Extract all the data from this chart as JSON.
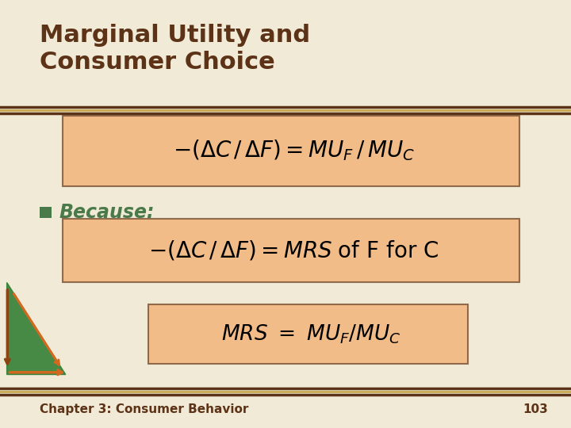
{
  "title_line1": "Marginal Utility and",
  "title_line2": "Consumer Choice",
  "title_color": "#5C3317",
  "bg_color": "#F0EAD6",
  "box_fill": "#F4A460",
  "box_edge_color": "#5C3317",
  "bullet_color": "#4a7a4a",
  "bullet_text": "Because:",
  "footer_text": "Chapter 3: Consumer Behavior",
  "footer_page": "103",
  "footer_color": "#5C3317",
  "rule_color_outer": "#5C3317",
  "rule_color_gold": "#C8A951",
  "green_color": "#2E7D32",
  "arrow_brown": "#8B4513",
  "arrow_tan": "#D2691E"
}
